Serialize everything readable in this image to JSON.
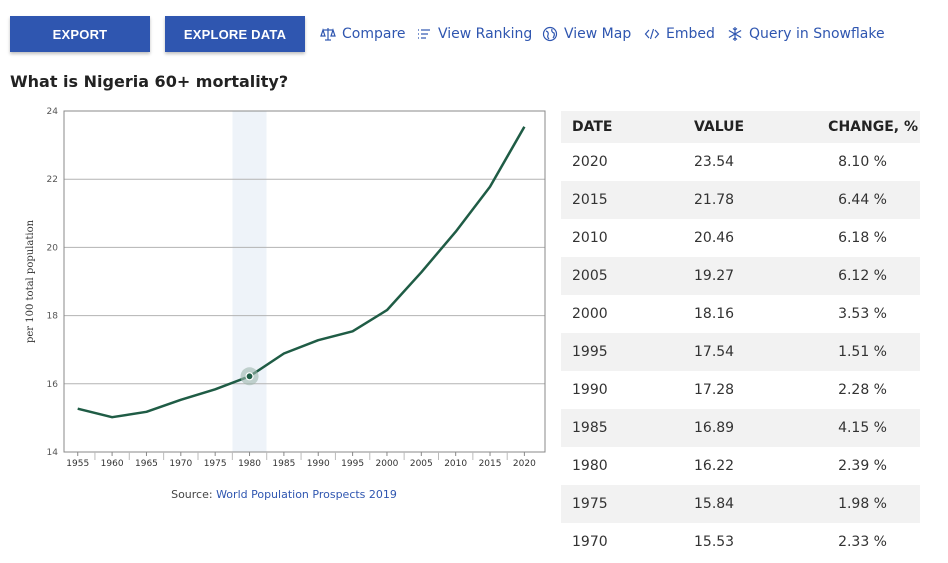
{
  "toolbar": {
    "export_label": "EXPORT",
    "explore_label": "EXPLORE DATA",
    "links": [
      {
        "label": "Compare",
        "icon": "scale-icon"
      },
      {
        "label": "View Ranking",
        "icon": "list-icon"
      },
      {
        "label": "View Map",
        "icon": "globe-icon"
      },
      {
        "label": "Embed",
        "icon": "code-icon"
      },
      {
        "label": "Query in Snowflake",
        "icon": "snowflake-icon"
      }
    ]
  },
  "page_title": "What is Nigeria 60+ mortality?",
  "source": {
    "prefix": "Source: ",
    "link": "World Population Prospects 2019"
  },
  "colors": {
    "accent": "#2f56b0",
    "line": "#1f5c45",
    "highlight_band": "#eef3f9",
    "grid": "#b3b3b3"
  },
  "chart_data": {
    "type": "line",
    "title": "",
    "xlabel": "",
    "ylabel": "per 100 total population",
    "x": [
      1955,
      1960,
      1965,
      1970,
      1975,
      1980,
      1985,
      1990,
      1995,
      2000,
      2005,
      2010,
      2015,
      2020
    ],
    "series": [
      {
        "values": [
          15.27,
          15.02,
          15.18,
          15.53,
          15.84,
          16.22,
          16.89,
          17.28,
          17.54,
          18.16,
          19.27,
          20.46,
          21.78,
          23.54
        ]
      }
    ],
    "xlim": [
      1953,
      2023
    ],
    "ylim": [
      14,
      24
    ],
    "yticks": [
      14,
      16,
      18,
      20,
      22,
      24
    ],
    "xticks": [
      1955,
      1960,
      1965,
      1970,
      1975,
      1980,
      1985,
      1990,
      1995,
      2000,
      2005,
      2010,
      2015,
      2020
    ],
    "highlight_x": 1980,
    "grid": true
  },
  "table": {
    "headers": [
      "DATE",
      "VALUE",
      "CHANGE, %"
    ],
    "rows": [
      [
        "2020",
        "23.54",
        "8.10 %"
      ],
      [
        "2015",
        "21.78",
        "6.44 %"
      ],
      [
        "2010",
        "20.46",
        "6.18 %"
      ],
      [
        "2005",
        "19.27",
        "6.12 %"
      ],
      [
        "2000",
        "18.16",
        "3.53 %"
      ],
      [
        "1995",
        "17.54",
        "1.51 %"
      ],
      [
        "1990",
        "17.28",
        "2.28 %"
      ],
      [
        "1985",
        "16.89",
        "4.15 %"
      ],
      [
        "1980",
        "16.22",
        "2.39 %"
      ],
      [
        "1975",
        "15.84",
        "1.98 %"
      ],
      [
        "1970",
        "15.53",
        "2.33 %"
      ]
    ]
  }
}
